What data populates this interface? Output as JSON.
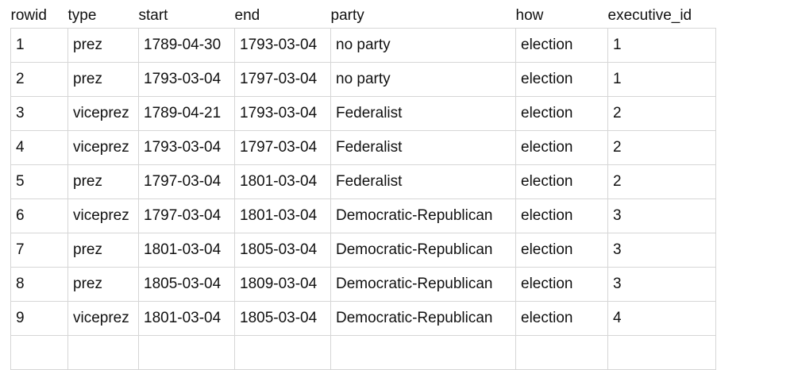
{
  "table": {
    "columns": [
      "rowid",
      "type",
      "start",
      "end",
      "party",
      "how",
      "executive_id"
    ],
    "rows": [
      [
        "1",
        "prez",
        "1789-04-30",
        "1793-03-04",
        "no party",
        "election",
        "1"
      ],
      [
        "2",
        "prez",
        "1793-03-04",
        "1797-03-04",
        "no party",
        "election",
        "1"
      ],
      [
        "3",
        "viceprez",
        "1789-04-21",
        "1793-03-04",
        "Federalist",
        "election",
        "2"
      ],
      [
        "4",
        "viceprez",
        "1793-03-04",
        "1797-03-04",
        "Federalist",
        "election",
        "2"
      ],
      [
        "5",
        "prez",
        "1797-03-04",
        "1801-03-04",
        "Federalist",
        "election",
        "2"
      ],
      [
        "6",
        "viceprez",
        "1797-03-04",
        "1801-03-04",
        "Democratic-Republican",
        "election",
        "3"
      ],
      [
        "7",
        "prez",
        "1801-03-04",
        "1805-03-04",
        "Democratic-Republican",
        "election",
        "3"
      ],
      [
        "8",
        "prez",
        "1805-03-04",
        "1809-03-04",
        "Democratic-Republican",
        "election",
        "3"
      ],
      [
        "9",
        "viceprez",
        "1801-03-04",
        "1805-03-04",
        "Democratic-Republican",
        "election",
        "4"
      ],
      [
        "",
        "",
        "",
        "",
        "",
        "",
        ""
      ]
    ]
  },
  "colors": {
    "text": "#111111",
    "border": "#d6d6d6",
    "background": "#ffffff"
  }
}
